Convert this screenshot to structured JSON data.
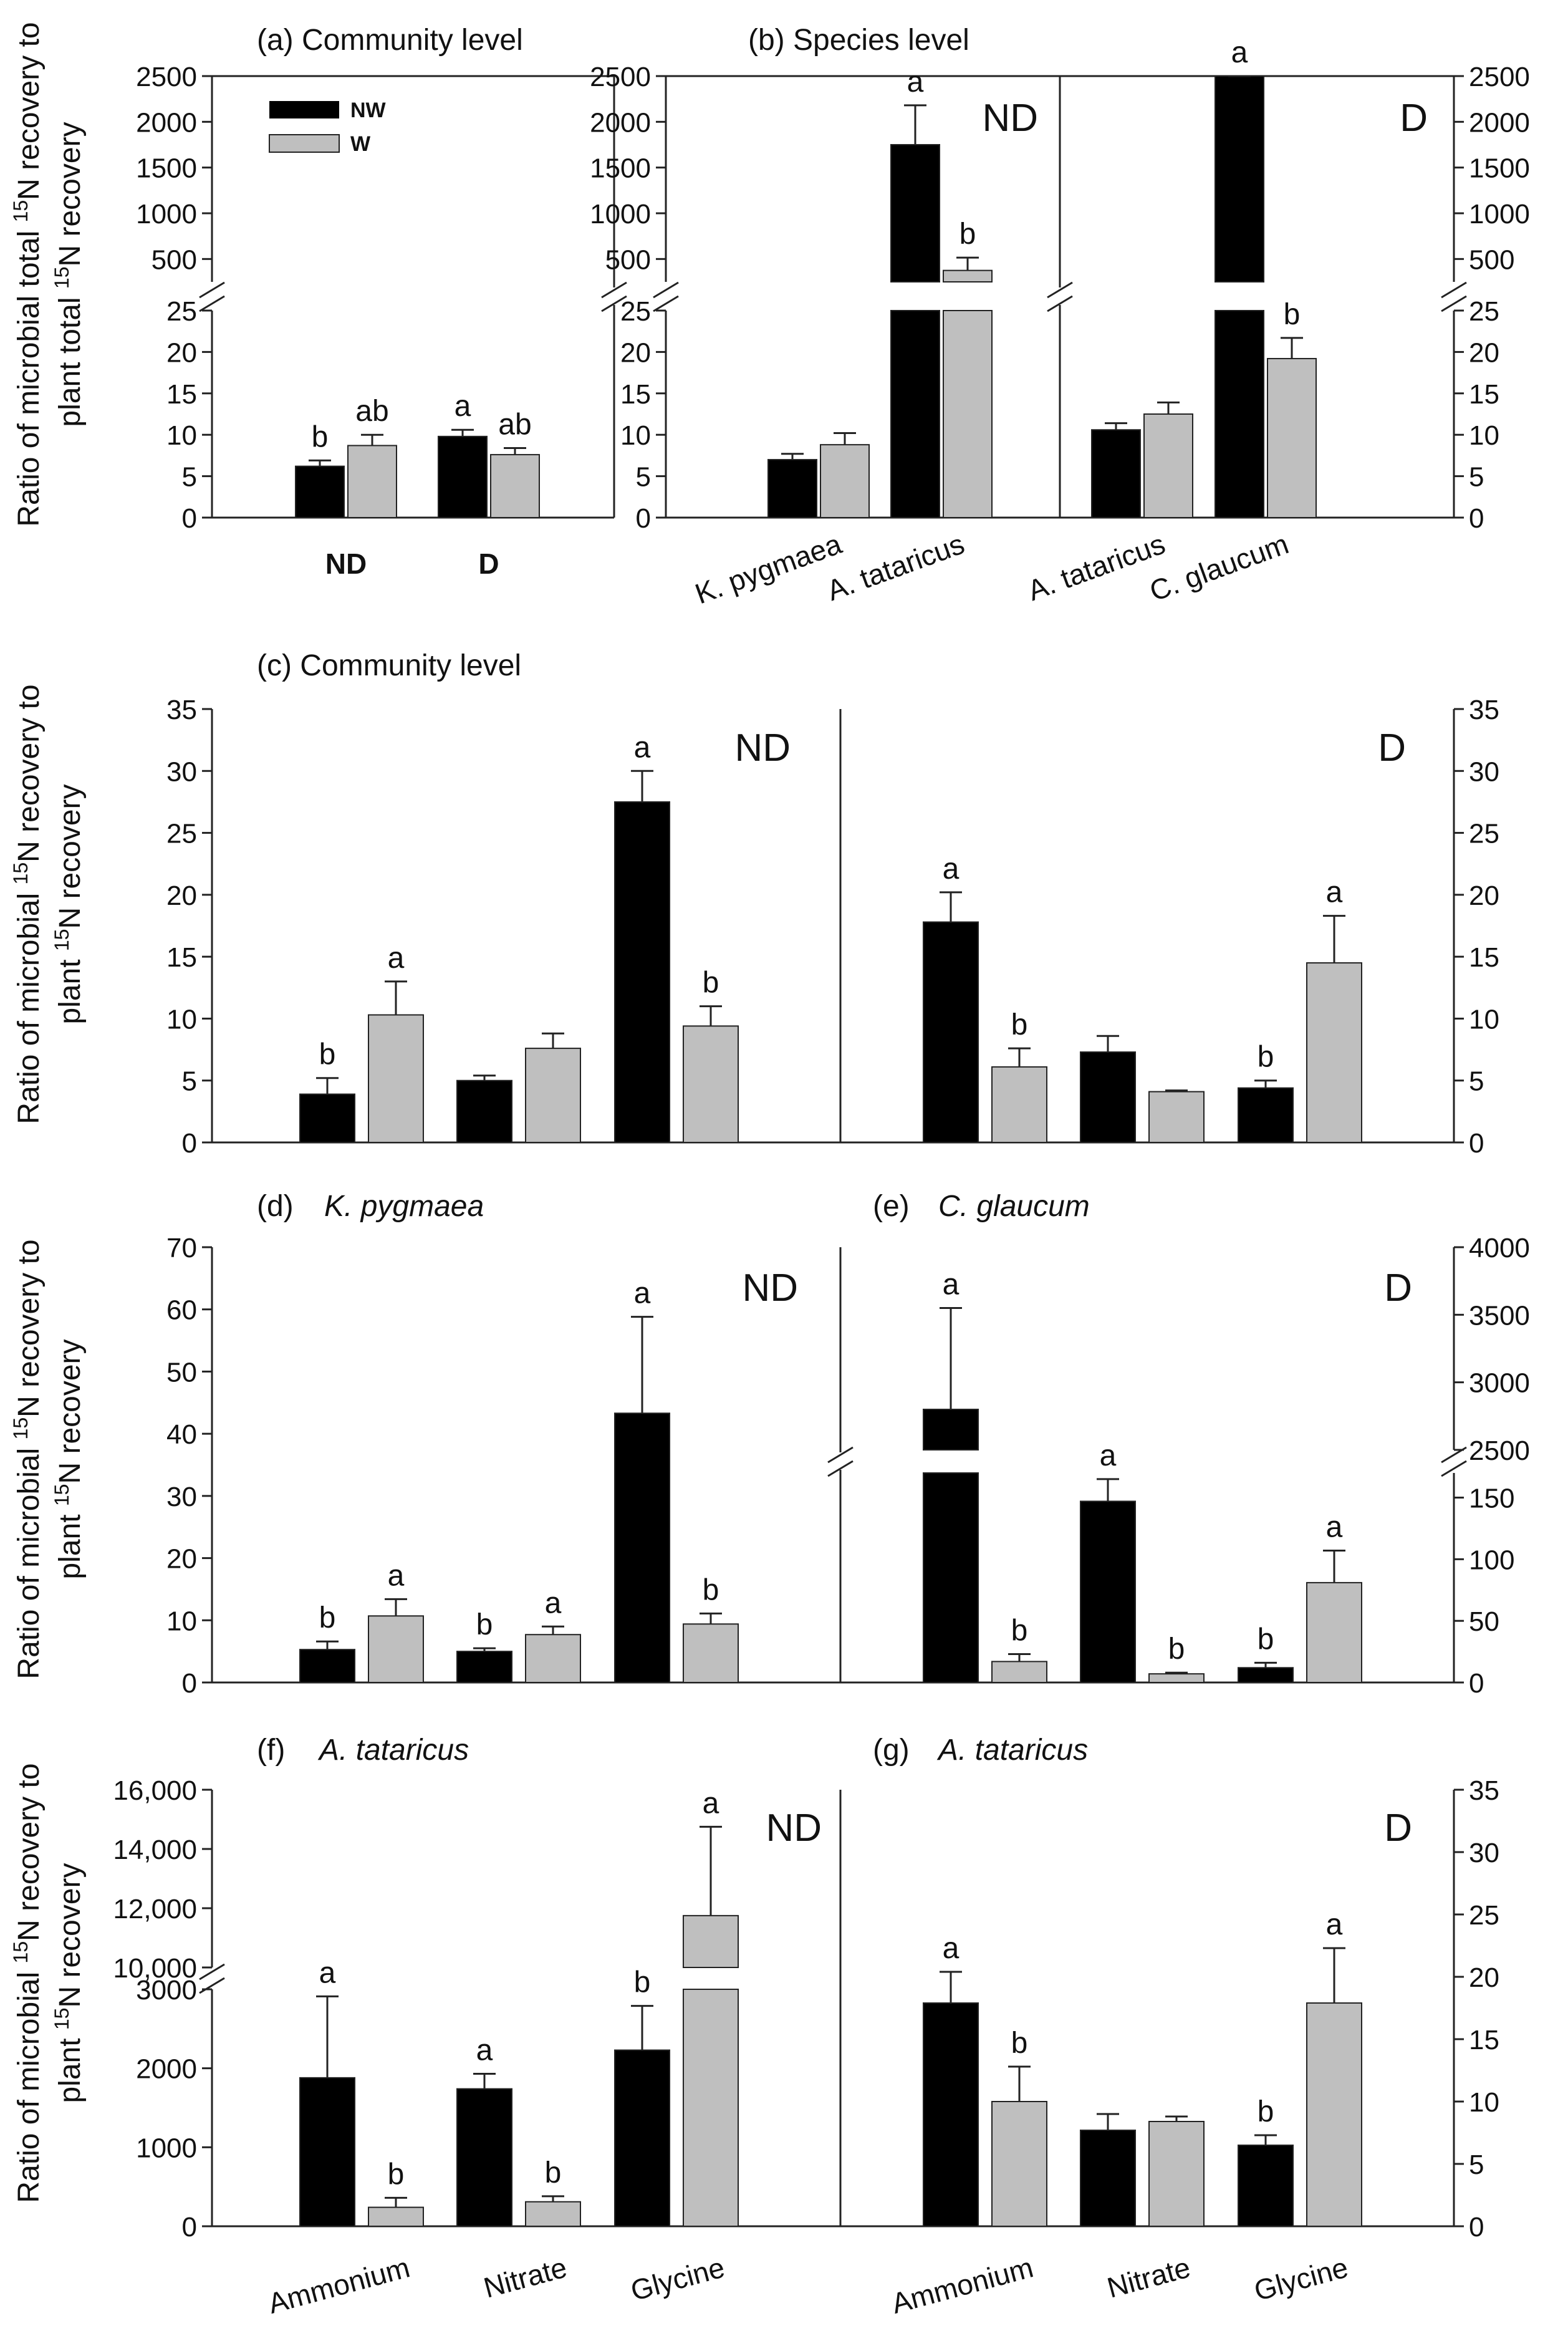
{
  "figure": {
    "legend": {
      "nw": "NW",
      "w": "W",
      "colors": {
        "nw": "#000000",
        "w": "#bfbfbf"
      }
    },
    "ylabel_top": {
      "l1": "Ratio of microbial total ",
      "l1_sup": "15",
      "l1_end": "N recovery to",
      "l2": "plant total ",
      "l2_sup": "15",
      "l2_end": "N recovery"
    },
    "ylabel_mid": {
      "l1": "Ratio of microbial ",
      "l1_sup": "15",
      "l1_end": "N recovery to",
      "l2": "plant ",
      "l2_sup": "15",
      "l2_end": "N recovery"
    }
  },
  "chart_data": [
    {
      "id": "a",
      "type": "bar",
      "title": "(a) Community level",
      "categories": [
        "ND",
        "D"
      ],
      "series": [
        {
          "name": "NW",
          "values": [
            6.2,
            9.8
          ],
          "errors": [
            0.7,
            0.8
          ],
          "letters": [
            "b",
            "a"
          ]
        },
        {
          "name": "W",
          "values": [
            8.7,
            7.6
          ],
          "errors": [
            1.3,
            0.8
          ],
          "letters": [
            "ab",
            "ab"
          ]
        }
      ],
      "ylim_lower": [
        0,
        25
      ],
      "ylim_upper": [
        250,
        2500
      ],
      "yticks_lower": [
        "0",
        "5",
        "10",
        "15",
        "20",
        "25"
      ],
      "yticks_upper": [
        "500",
        "1000",
        "1500",
        "2000",
        "2500"
      ]
    },
    {
      "id": "b",
      "type": "bar",
      "title": "(b) Species level",
      "panels": [
        "ND",
        "D"
      ],
      "categories": [
        "K. pygmaea",
        "A. tataricus",
        "A. tataricus",
        "C. glaucum"
      ],
      "series": [
        {
          "name": "NW",
          "values": [
            7.0,
            1750,
            10.6,
            2510
          ],
          "errors": [
            0.7,
            430,
            0.8,
            5
          ],
          "letters": [
            "",
            "a",
            "",
            "a"
          ]
        },
        {
          "name": "W",
          "values": [
            8.8,
            375,
            12.5,
            19.2
          ],
          "errors": [
            1.4,
            140,
            1.4,
            2.5
          ],
          "letters": [
            "",
            "b",
            "",
            "b"
          ]
        }
      ],
      "ylim_lower": [
        0,
        25
      ],
      "ylim_upper": [
        250,
        2500
      ],
      "yticks_lower": [
        "0",
        "5",
        "10",
        "15",
        "20",
        "25"
      ],
      "yticks_upper": [
        "500",
        "1000",
        "1500",
        "2000",
        "2500"
      ]
    },
    {
      "id": "c",
      "type": "bar",
      "title": "(c) Community level",
      "panels": [
        "ND",
        "D"
      ],
      "categories": [
        "Ammonium",
        "Nitrate",
        "Glycine",
        "Ammonium",
        "Nitrate",
        "Glycine"
      ],
      "series": [
        {
          "name": "NW",
          "values": [
            3.9,
            5.0,
            27.5,
            17.8,
            7.3,
            4.4
          ],
          "errors": [
            1.3,
            0.4,
            2.5,
            2.4,
            1.3,
            0.6
          ],
          "letters": [
            "b",
            "",
            "a",
            "a",
            "",
            "b"
          ]
        },
        {
          "name": "W",
          "values": [
            10.3,
            7.6,
            9.4,
            6.1,
            4.1,
            14.5
          ],
          "errors": [
            2.7,
            1.2,
            1.6,
            1.5,
            0.1,
            3.8
          ],
          "letters": [
            "a",
            "",
            "b",
            "b",
            "",
            "a"
          ]
        }
      ],
      "ylim": [
        0,
        35
      ],
      "yticks": [
        "0",
        "5",
        "10",
        "15",
        "20",
        "25",
        "30",
        "35"
      ]
    },
    {
      "id": "d",
      "type": "bar",
      "title": "(d)",
      "species": "K. pygmaea",
      "panel": "ND",
      "categories": [
        "Ammonium",
        "Nitrate",
        "Glycine"
      ],
      "series": [
        {
          "name": "NW",
          "values": [
            5.3,
            5.0,
            43.3
          ],
          "errors": [
            1.3,
            0.5,
            15.5
          ],
          "letters": [
            "b",
            "b",
            "a"
          ]
        },
        {
          "name": "W",
          "values": [
            10.7,
            7.7,
            9.4
          ],
          "errors": [
            2.7,
            1.3,
            1.7
          ],
          "letters": [
            "a",
            "a",
            "b"
          ]
        }
      ],
      "ylim": [
        0,
        70
      ],
      "yticks": [
        "0",
        "10",
        "20",
        "30",
        "40",
        "50",
        "60",
        "70"
      ]
    },
    {
      "id": "e",
      "type": "bar",
      "title": "(e)",
      "species": "C. glaucum",
      "panel": "D",
      "categories": [
        "Ammonium",
        "Nitrate",
        "Glycine"
      ],
      "series": [
        {
          "name": "NW",
          "values": [
            2800,
            147,
            12
          ],
          "errors": [
            750,
            18,
            4
          ],
          "letters": [
            "a",
            "a",
            "b"
          ]
        },
        {
          "name": "W",
          "values": [
            17,
            7,
            81
          ],
          "errors": [
            6,
            1,
            26
          ],
          "letters": [
            "b",
            "b",
            "a"
          ]
        }
      ],
      "ylim_lower": [
        0,
        170
      ],
      "ylim_upper": [
        2500,
        4000
      ],
      "yticks_lower": [
        "0",
        "50",
        "100",
        "150"
      ],
      "yticks_upper": [
        "2500",
        "3000",
        "3500",
        "4000"
      ]
    },
    {
      "id": "f",
      "type": "bar",
      "title": "(f)",
      "species": "A. tataricus",
      "panel": "ND",
      "categories": [
        "Ammonium",
        "Nitrate",
        "Glycine"
      ],
      "series": [
        {
          "name": "NW",
          "values": [
            1880,
            1740,
            2230
          ],
          "errors": [
            1030,
            190,
            560
          ],
          "letters": [
            "a",
            "a",
            "b"
          ]
        },
        {
          "name": "W",
          "values": [
            240,
            310,
            11750
          ],
          "errors": [
            120,
            70,
            3000
          ],
          "letters": [
            "b",
            "b",
            "a"
          ]
        }
      ],
      "ylim_lower": [
        0,
        3000
      ],
      "ylim_upper": [
        10000,
        16000
      ],
      "yticks_lower": [
        "0",
        "1000",
        "2000",
        "3000"
      ],
      "yticks_upper": [
        "10,000",
        "12,000",
        "14,000",
        "16,000"
      ]
    },
    {
      "id": "g",
      "type": "bar",
      "title": "(g)",
      "species": "A. tataricus",
      "panel": "D",
      "categories": [
        "Ammonium",
        "Nitrate",
        "Glycine"
      ],
      "series": [
        {
          "name": "NW",
          "values": [
            17.9,
            7.7,
            6.5
          ],
          "errors": [
            2.5,
            1.3,
            0.8
          ],
          "letters": [
            "a",
            "",
            "b"
          ]
        },
        {
          "name": "W",
          "values": [
            10.0,
            8.4,
            17.9
          ],
          "errors": [
            2.8,
            0.4,
            4.4
          ],
          "letters": [
            "b",
            "",
            "a"
          ]
        }
      ],
      "ylim": [
        0,
        35
      ],
      "yticks": [
        "0",
        "5",
        "10",
        "15",
        "20",
        "25",
        "30",
        "35"
      ]
    }
  ]
}
